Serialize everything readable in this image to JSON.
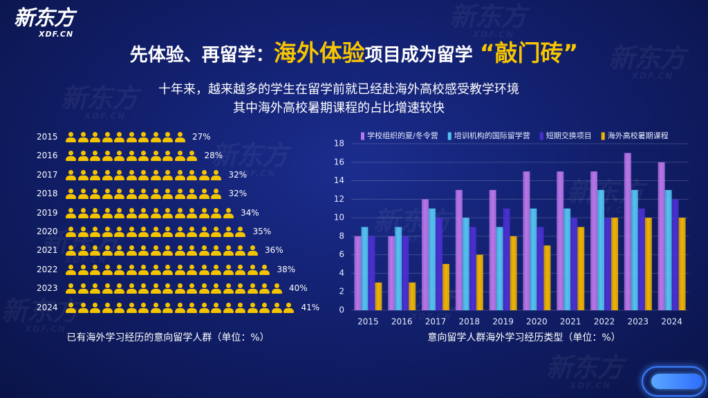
{
  "logo": {
    "name": "新东方",
    "domain": "XDF.CN"
  },
  "title": {
    "part1": "先体验、再留学：",
    "highlight1": "海外体验",
    "part2": "项目成为留学",
    "highlight2": "“敲门砖”"
  },
  "subtitle": {
    "line1": "十年来，越来越多的学生在留学前就已经赴海外高校感受教学环境",
    "line2": "其中海外高校暑期课程的占比增速较快"
  },
  "colors": {
    "background": "#0b1654",
    "accent": "#f7c600",
    "text": "#ffffff"
  },
  "chart_data": [
    {
      "type": "bar",
      "orientation": "horizontal",
      "style": "pictogram",
      "icon": "person-icon",
      "color": "#f5c400",
      "categories": [
        "2015",
        "2016",
        "2017",
        "2018",
        "2019",
        "2020",
        "2021",
        "2022",
        "2023",
        "2024"
      ],
      "values": [
        27,
        28,
        32,
        32,
        34,
        35,
        36,
        38,
        40,
        41
      ],
      "value_suffix": "%",
      "caption": "已有海外学习经历的意向留学人群（单位：%）"
    },
    {
      "type": "bar",
      "categories": [
        "2015",
        "2016",
        "2017",
        "2018",
        "2019",
        "2020",
        "2021",
        "2022",
        "2023",
        "2024"
      ],
      "series": [
        {
          "name": "学校组织的夏/冬令营",
          "color": "#b976e8",
          "values": [
            8,
            8,
            12,
            13,
            13,
            15,
            15,
            15,
            17,
            16
          ]
        },
        {
          "name": "培训机构的国际留学营",
          "color": "#55c3f0",
          "values": [
            9,
            9,
            11,
            10,
            9,
            11,
            11,
            13,
            13,
            13
          ]
        },
        {
          "name": "短期交换项目",
          "color": "#4b2fd0",
          "values": [
            8,
            8,
            10,
            9,
            11,
            9,
            10,
            10,
            11,
            12
          ]
        },
        {
          "name": "海外高校暑期课程",
          "color": "#f0b400",
          "values": [
            3,
            3,
            5,
            6,
            8,
            7,
            9,
            10,
            10,
            10
          ]
        }
      ],
      "ylim": [
        0,
        18
      ],
      "yticks": [
        0,
        2,
        4,
        6,
        8,
        10,
        12,
        14,
        16,
        18
      ],
      "grid": true,
      "legend": "top",
      "caption": "意向留学人群海外学习经历类型（单位：%）"
    }
  ]
}
